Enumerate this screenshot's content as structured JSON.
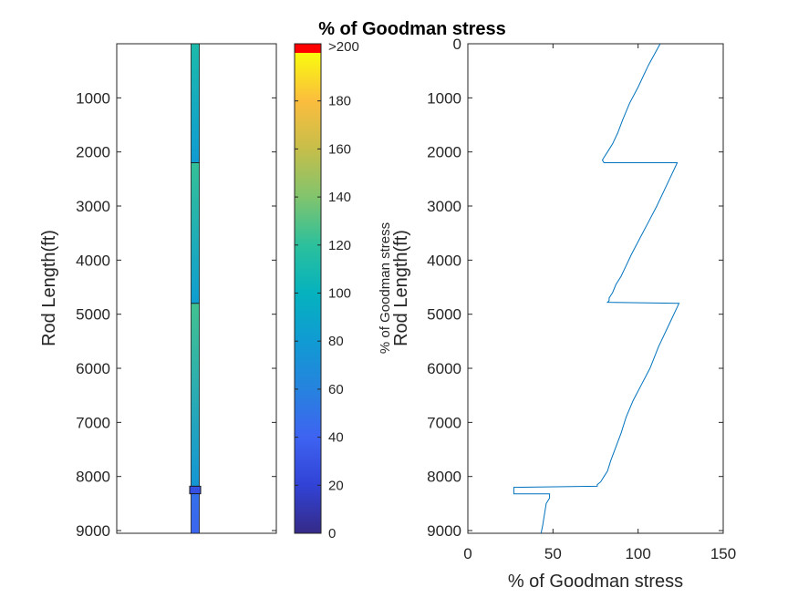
{
  "title": "% of Goodman stress",
  "chart_data": [
    {
      "type": "rod-colormap",
      "ylabel": "Rod Length(ft)",
      "ylim": [
        0,
        9050
      ],
      "y_reversed": true,
      "yticks": [
        1000,
        2000,
        3000,
        4000,
        5000,
        6000,
        7000,
        8000,
        9000
      ],
      "colorbar": {
        "label": "% of Goodman stress",
        "clim": [
          0,
          200
        ],
        "ticks": [
          0,
          20,
          40,
          60,
          80,
          100,
          120,
          140,
          160,
          180
        ],
        "top_label": ">200",
        "overflow_color": "#ff0000"
      },
      "segments": [
        {
          "from": 0,
          "to": 2200,
          "value_top": 112,
          "value_bottom": 80
        },
        {
          "from": 2200,
          "to": 4800,
          "value_top": 122,
          "value_bottom": 82
        },
        {
          "from": 4800,
          "to": 8180,
          "value_top": 125,
          "value_bottom": 76
        },
        {
          "from": 8180,
          "to": 8320,
          "value_top": 28,
          "value_bottom": 28
        },
        {
          "from": 8320,
          "to": 9050,
          "value_top": 48,
          "value_bottom": 42
        }
      ]
    },
    {
      "type": "line",
      "xlabel": "% of Goodman stress",
      "ylabel": "Rod Length(ft)",
      "xlim": [
        0,
        150
      ],
      "ylim": [
        0,
        9050
      ],
      "y_reversed": true,
      "xticks": [
        0,
        50,
        100,
        150
      ],
      "yticks": [
        0,
        1000,
        2000,
        3000,
        4000,
        5000,
        6000,
        7000,
        8000,
        9000
      ],
      "color": "#0072bd",
      "x": [
        113,
        106,
        100,
        95,
        91,
        88,
        85,
        82,
        80,
        79,
        80,
        123,
        117,
        111,
        106,
        101,
        96,
        93,
        90,
        87,
        85,
        83,
        83,
        82,
        124,
        118,
        112,
        107,
        102,
        97,
        93,
        90,
        87,
        84,
        82,
        80,
        78,
        76,
        76,
        27,
        27,
        48,
        48,
        46,
        45,
        44,
        43
      ],
      "y": [
        0,
        400,
        800,
        1100,
        1400,
        1650,
        1850,
        2000,
        2100,
        2150,
        2200,
        2200,
        2600,
        3000,
        3300,
        3600,
        3900,
        4100,
        4300,
        4450,
        4600,
        4700,
        4750,
        4780,
        4800,
        5200,
        5600,
        6000,
        6300,
        6600,
        6900,
        7200,
        7450,
        7700,
        7900,
        8000,
        8100,
        8150,
        8180,
        8200,
        8320,
        8320,
        8400,
        8500,
        8700,
        8900,
        9050
      ]
    }
  ]
}
